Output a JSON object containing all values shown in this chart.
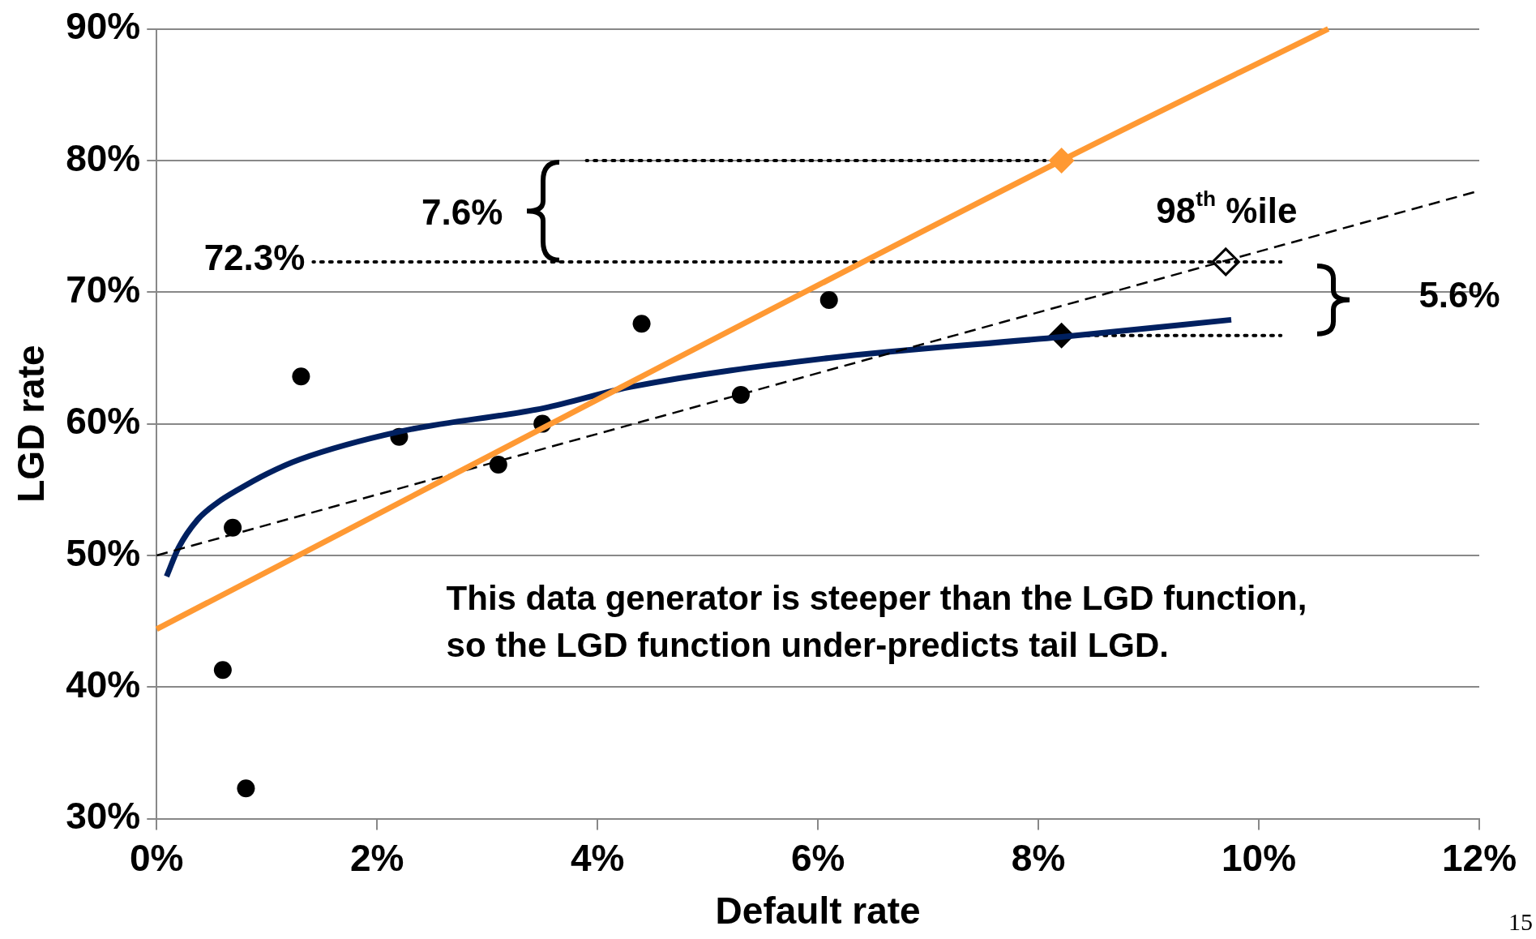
{
  "chart_data": {
    "type": "scatter",
    "xlabel": "Default rate",
    "ylabel": "LGD rate",
    "xlim": [
      0,
      12
    ],
    "xticks": [
      {
        "value": 0,
        "label": "0%"
      },
      {
        "value": 2,
        "label": "2%"
      },
      {
        "value": 4,
        "label": "4%"
      },
      {
        "value": 6,
        "label": "6%"
      },
      {
        "value": 8,
        "label": "8%"
      },
      {
        "value": 10,
        "label": "10%"
      },
      {
        "value": 12,
        "label": "12%"
      }
    ],
    "ylim": [
      30,
      90
    ],
    "yticks": [
      {
        "value": 30,
        "label": "30%"
      },
      {
        "value": 40,
        "label": "40%"
      },
      {
        "value": 50,
        "label": "50%"
      },
      {
        "value": 60,
        "label": "60%"
      },
      {
        "value": 70,
        "label": "70%"
      },
      {
        "value": 80,
        "label": "80%"
      },
      {
        "value": 90,
        "label": "90%"
      }
    ],
    "grid": "y",
    "legend": false,
    "series": [
      {
        "type": "line",
        "color": "#ff9933",
        "x": [
          0,
          8.21,
          10.63
        ],
        "values": [
          44.4,
          80,
          90
        ],
        "marker": "none",
        "line_style": "solid"
      },
      {
        "type": "line",
        "color": "#000000",
        "x": [
          0,
          12
        ],
        "values": [
          50,
          77.7
        ],
        "marker": "none",
        "line_style": "dashed"
      },
      {
        "type": "line",
        "color": "#002060",
        "x": [
          0.09,
          0.2,
          0.37,
          0.55,
          0.74,
          1,
          1.3,
          2.2,
          3.52,
          4.3,
          6.1,
          8.21,
          9.75
        ],
        "values": [
          48.4,
          50.6,
          52.7,
          54,
          55,
          56.2,
          57.3,
          59.4,
          61.2,
          62.8,
          65,
          66.6,
          67.9
        ],
        "marker": "none",
        "line_style": "solid"
      },
      {
        "type": "line",
        "color": "#000000",
        "x": [
          3.9,
          8.06
        ],
        "values": [
          80,
          80
        ],
        "marker": "none",
        "line_style": "dotted"
      },
      {
        "type": "line",
        "color": "#000000",
        "x": [
          1.42,
          10.2
        ],
        "values": [
          72.3,
          72.3
        ],
        "marker": "none",
        "line_style": "dotted"
      },
      {
        "type": "line",
        "color": "#000000",
        "x": [
          8.21,
          10.2
        ],
        "values": [
          66.7,
          66.7
        ],
        "marker": "none",
        "line_style": "dotted"
      },
      {
        "color": "#000000",
        "x": [
          1.31,
          0.69,
          0.6,
          0.81,
          2.2,
          3.1,
          3.5,
          4.4,
          5.3,
          6.1
        ],
        "values": [
          63.6,
          52.1,
          41.3,
          32.3,
          59,
          56.9,
          60,
          67.6,
          62.2,
          69.4
        ],
        "marker": "circle"
      },
      {
        "color": "#ff9933",
        "x": [
          8.21
        ],
        "values": [
          80
        ],
        "marker": "diamond"
      },
      {
        "color": "#000000",
        "x": [
          8.21
        ],
        "values": [
          66.7
        ],
        "marker": "diamond"
      },
      {
        "color": "#ffffff",
        "x": [
          9.7
        ],
        "values": [
          72.3
        ],
        "marker": "diamond"
      }
    ],
    "annotations": [
      "This data generator is steeper than the LGD function, so the LGD function under-predicts tail LGD.",
      "15",
      "72.3%",
      "7.6%",
      "98$^{th}$ %ile",
      "5.6%"
    ]
  }
}
